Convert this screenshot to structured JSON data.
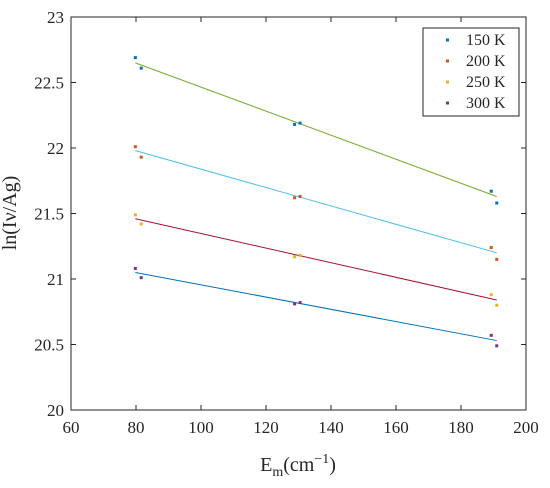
{
  "chart_data": {
    "type": "scatter",
    "xlabel": "E_m(cm^{-1})",
    "ylabel": "ln(Iν/Ag)",
    "xlim": [
      60,
      200
    ],
    "ylim": [
      20,
      23
    ],
    "xticks": [
      "60",
      "80",
      "100",
      "120",
      "140",
      "160",
      "180",
      "200"
    ],
    "yticks": [
      "20",
      "20.5",
      "21",
      "21.5",
      "22",
      "22.5",
      "23"
    ],
    "grid": false,
    "legend_position": "top-right",
    "series": [
      {
        "name": "150 K",
        "marker_color": "#0072BD",
        "fit_color": "#77AC30",
        "points": [
          [
            79.8,
            22.69
          ],
          [
            81.6,
            22.61
          ],
          [
            128.8,
            22.18
          ],
          [
            130.5,
            22.19
          ],
          [
            189.3,
            21.67
          ],
          [
            191.0,
            21.58
          ]
        ],
        "fit": [
          [
            79.8,
            22.65
          ],
          [
            191.0,
            21.63
          ]
        ]
      },
      {
        "name": "200 K",
        "marker_color": "#D95319",
        "fit_color": "#4DBEEE",
        "points": [
          [
            79.8,
            22.01
          ],
          [
            81.6,
            21.93
          ],
          [
            128.8,
            21.62
          ],
          [
            130.5,
            21.63
          ],
          [
            189.3,
            21.24
          ],
          [
            191.0,
            21.15
          ]
        ],
        "fit": [
          [
            79.8,
            21.98
          ],
          [
            191.0,
            21.2
          ]
        ]
      },
      {
        "name": "250 K",
        "marker_color": "#EDB120",
        "fit_color": "#A2142F",
        "points": [
          [
            79.8,
            21.49
          ],
          [
            81.6,
            21.42
          ],
          [
            128.8,
            21.17
          ],
          [
            130.5,
            21.18
          ],
          [
            189.3,
            20.88
          ],
          [
            191.0,
            20.8
          ]
        ],
        "fit": [
          [
            79.8,
            21.46
          ],
          [
            191.0,
            20.84
          ]
        ]
      },
      {
        "name": "300 K",
        "marker_color": "#7E2F8E",
        "fit_color": "#0072BD",
        "points": [
          [
            79.8,
            21.08
          ],
          [
            81.6,
            21.01
          ],
          [
            128.8,
            20.81
          ],
          [
            130.5,
            20.82
          ],
          [
            189.3,
            20.57
          ],
          [
            191.0,
            20.49
          ]
        ],
        "fit": [
          [
            79.8,
            21.05
          ],
          [
            191.0,
            20.53
          ]
        ]
      }
    ]
  }
}
